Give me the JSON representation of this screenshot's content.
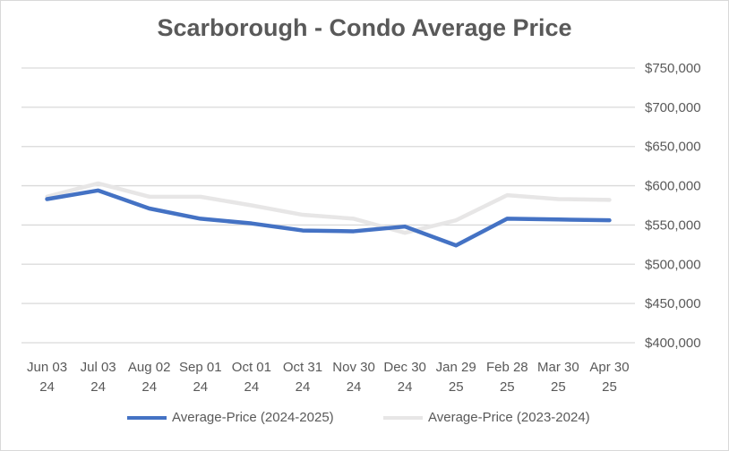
{
  "chart_data": {
    "type": "line",
    "title": "Scarborough - Condo Average Price",
    "xlabel": "",
    "ylabel": "",
    "categories": [
      "Jun 03 24",
      "Jul 03 24",
      "Aug 02 24",
      "Sep 01 24",
      "Oct 01 24",
      "Oct 31 24",
      "Nov 30 24",
      "Dec 30 24",
      "Jan 29 25",
      "Feb 28 25",
      "Mar 30 25",
      "Apr 30 25"
    ],
    "category_lines": [
      [
        "Jun 03",
        "24"
      ],
      [
        "Jul 03",
        "24"
      ],
      [
        "Aug 02",
        "24"
      ],
      [
        "Sep 01",
        "24"
      ],
      [
        "Oct 01",
        "24"
      ],
      [
        "Oct 31",
        "24"
      ],
      [
        "Nov 30",
        "24"
      ],
      [
        "Dec 30",
        "24"
      ],
      [
        "Jan 29",
        "25"
      ],
      [
        "Feb 28",
        "25"
      ],
      [
        "Mar 30",
        "25"
      ],
      [
        "Apr 30",
        "25"
      ]
    ],
    "ylim": [
      400000,
      750000
    ],
    "yticks": [
      400000,
      450000,
      500000,
      550000,
      600000,
      650000,
      700000,
      750000
    ],
    "ytick_labels": [
      "$400,000",
      "$450,000",
      "$500,000",
      "$550,000",
      "$600,000",
      "$650,000",
      "$700,000",
      "$750,000"
    ],
    "y_axis_side": "right",
    "grid": true,
    "legend_position": "bottom",
    "series": [
      {
        "name": "Average-Price (2024-2025)",
        "color": "#4472c4",
        "values": [
          583000,
          594000,
          571000,
          558000,
          552000,
          543000,
          542000,
          548000,
          524000,
          558000,
          557000,
          556000
        ]
      },
      {
        "name": "Average-Price (2023-2024)",
        "color": "#e7e6e6",
        "values": [
          586000,
          603000,
          586000,
          586000,
          575000,
          563000,
          558000,
          540000,
          556000,
          588000,
          583000,
          582000
        ]
      }
    ]
  }
}
